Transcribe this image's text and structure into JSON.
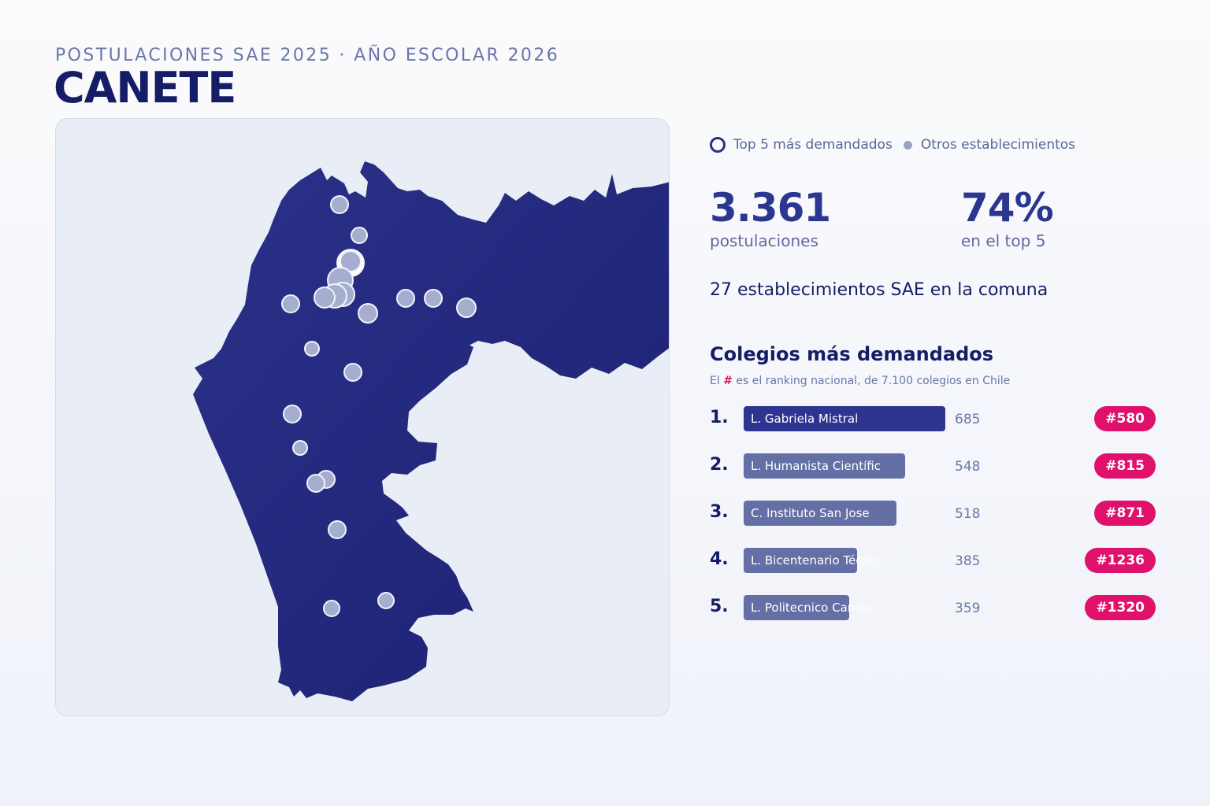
{
  "header": {
    "subtitle": "POSTULACIONES SAE 2025 · AÑO ESCOLAR 2026",
    "title": "CANETE"
  },
  "legend": {
    "top5_label": "Top 5 más demandados",
    "others_label": "Otros establecimientos"
  },
  "stats": {
    "applications_value": "3.361",
    "applications_label": "postulaciones",
    "top5_share_value": "74%",
    "top5_share_label": "en el top 5"
  },
  "summary": "27 establecimientos SAE en la comuna",
  "ranking": {
    "title": "Colegios más demandados",
    "note_prefix": "El",
    "note_hash": "#",
    "note_suffix": "es el ranking nacional, de 7.100 colegios en Chile",
    "schools": [
      {
        "rank": "1.",
        "name": "L. Gabriela Mistral",
        "count": 685,
        "national_rank": "#580",
        "color": "#2d3590"
      },
      {
        "rank": "2.",
        "name": "L. Humanista Científic",
        "count": 548,
        "national_rank": "#815",
        "color": "#646fa5"
      },
      {
        "rank": "3.",
        "name": "C. Instituto San Jose",
        "count": 518,
        "national_rank": "#871",
        "color": "#646fa5"
      },
      {
        "rank": "4.",
        "name": "L. Bicentenario Técnic",
        "count": 385,
        "national_rank": "#1236",
        "color": "#646fa5"
      },
      {
        "rank": "5.",
        "name": "L. Politecnico Canete",
        "count": 359,
        "national_rank": "#1320",
        "color": "#646fa5"
      }
    ]
  },
  "map": {
    "region_color": "#24287e",
    "marker_color": "#a6aed0",
    "badge_color": "#e0116b"
  }
}
